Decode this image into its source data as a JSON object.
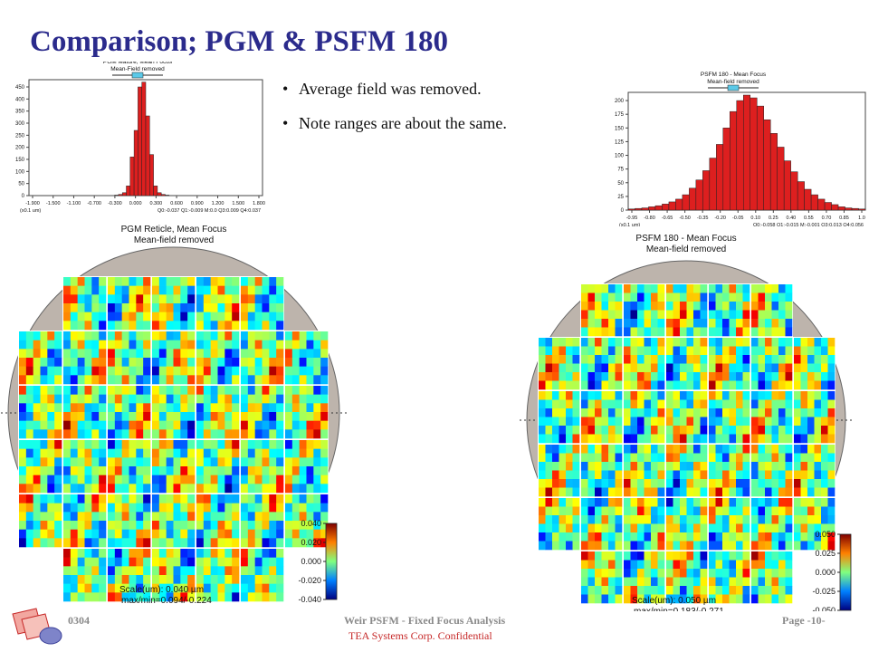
{
  "slide": {
    "title": "Comparison; PGM & PSFM 180",
    "bullets": [
      "Average field was removed.",
      "Note ranges are about the same."
    ],
    "footer_left": "0304",
    "footer_center": "Weir PSFM - Fixed Focus Analysis",
    "footer_page": "Page -10-",
    "confidential": "TEA Systems Corp. Confidential"
  },
  "colors": {
    "title": "#2b2b8c",
    "bar": "#dd1f1f",
    "disk": "#bdb4ac",
    "accent": "#c62828"
  },
  "chart_data": [
    {
      "type": "bar",
      "title": "PGM feature, Mean Focus",
      "subtitle": "Mean-Field removed",
      "xlabel": "(x0.1 um)",
      "x_tick_labels": [
        "-1.900",
        "-1.500",
        "-1.100",
        "-0.700",
        "-0.300",
        "0.000",
        "0.300",
        "0.600",
        "0.900",
        "1.200",
        "1.500",
        "1.800"
      ],
      "y_tick_labels": [
        "0",
        "50",
        "100",
        "150",
        "200",
        "250",
        "300",
        "350",
        "400",
        "450"
      ],
      "ylim": [
        0,
        480
      ],
      "quartile_text": "Q0:-0.037 Q1:-0.009 M:0.0 Q3:0.009 Q4:0.037",
      "values": [
        0,
        0,
        0,
        0,
        0,
        0,
        0,
        0,
        0,
        0,
        0,
        0,
        0,
        0,
        0,
        0,
        0,
        0,
        0,
        0,
        0,
        0,
        2,
        5,
        12,
        40,
        160,
        270,
        450,
        470,
        330,
        170,
        40,
        12,
        5,
        2,
        0,
        0,
        0,
        0,
        0,
        0,
        0,
        0,
        0,
        0,
        0,
        0,
        0,
        0,
        0,
        0,
        0,
        0,
        0,
        0,
        0,
        0,
        0,
        0
      ]
    },
    {
      "type": "bar",
      "title": "PSFM 180 - Mean Focus",
      "subtitle": "Mean-field removed",
      "xlabel": "(x0.1 um)",
      "x_tick_labels": [
        "-0.95",
        "-0.80",
        "-0.65",
        "-0.50",
        "-0.35",
        "-0.20",
        "-0.05",
        "0.10",
        "0.25",
        "0.40",
        "0.55",
        "0.70",
        "0.85",
        "1.0"
      ],
      "y_tick_labels": [
        "0",
        "25",
        "50",
        "75",
        "100",
        "125",
        "150",
        "175",
        "200"
      ],
      "ylim": [
        0,
        215
      ],
      "quartile_text": "Q0:-0.058 Q1:-0.015 M:-0.001 Q3:0.013 Q4:0.056",
      "values": [
        2,
        3,
        4,
        6,
        8,
        11,
        15,
        20,
        28,
        40,
        55,
        72,
        95,
        120,
        150,
        180,
        200,
        210,
        205,
        190,
        165,
        140,
        115,
        90,
        70,
        52,
        38,
        28,
        20,
        14,
        10,
        6,
        4,
        3,
        2
      ]
    },
    {
      "type": "heatmap",
      "title": "PGM Reticle, Mean Focus",
      "subtitle": "Mean-field removed",
      "scale_text": "Scale(um): 0.040 µm",
      "maxmin_text": "max/min=0.094/-0.224",
      "colorbar_labels": [
        "0.040",
        "0.020",
        "0.000",
        "-0.020",
        "-0.040"
      ]
    },
    {
      "type": "heatmap",
      "title": "PSFM 180 - Mean Focus",
      "subtitle": "Mean-field removed",
      "scale_text": "Scale(um): 0.050 µm",
      "maxmin_text": "max/min=0.183/-0.271",
      "colorbar_labels": [
        "0.050",
        "0.025",
        "0.000",
        "-0.025",
        "-0.050"
      ]
    }
  ]
}
